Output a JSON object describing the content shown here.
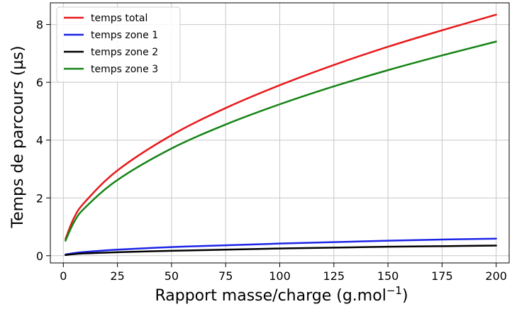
{
  "chart_data": {
    "type": "line",
    "title": "",
    "xlabel": "Rapport masse/charge (g.mol",
    "xlabel_exponent": "−1",
    "xlabel_suffix": ")",
    "ylabel": "Temps de parcours (µs)",
    "xlim": [
      -6,
      206
    ],
    "ylim": [
      -0.25,
      8.75
    ],
    "xticks": [
      0,
      25,
      50,
      75,
      100,
      125,
      150,
      175,
      200
    ],
    "yticks": [
      0,
      2,
      4,
      6,
      8
    ],
    "grid": true,
    "legend_position": "top-left",
    "x": [
      1,
      5,
      10,
      25,
      50,
      75,
      100,
      125,
      150,
      175,
      200
    ],
    "series": [
      {
        "name": "temps total",
        "color": "#e8191b",
        "values": [
          0.58,
          1.32,
          1.86,
          2.95,
          4.17,
          5.11,
          5.9,
          6.6,
          7.23,
          7.8,
          8.34
        ]
      },
      {
        "name": "temps zone 1",
        "color": "#1c24e6",
        "values": [
          0.04,
          0.09,
          0.13,
          0.21,
          0.3,
          0.36,
          0.42,
          0.47,
          0.52,
          0.56,
          0.59
        ]
      },
      {
        "name": "temps zone 2",
        "color": "#000000",
        "values": [
          0.025,
          0.055,
          0.08,
          0.12,
          0.17,
          0.21,
          0.25,
          0.28,
          0.31,
          0.33,
          0.35
        ]
      },
      {
        "name": "temps zone 3",
        "color": "#148414",
        "values": [
          0.52,
          1.17,
          1.66,
          2.62,
          3.71,
          4.54,
          5.24,
          5.86,
          6.42,
          6.93,
          7.41
        ]
      }
    ]
  }
}
